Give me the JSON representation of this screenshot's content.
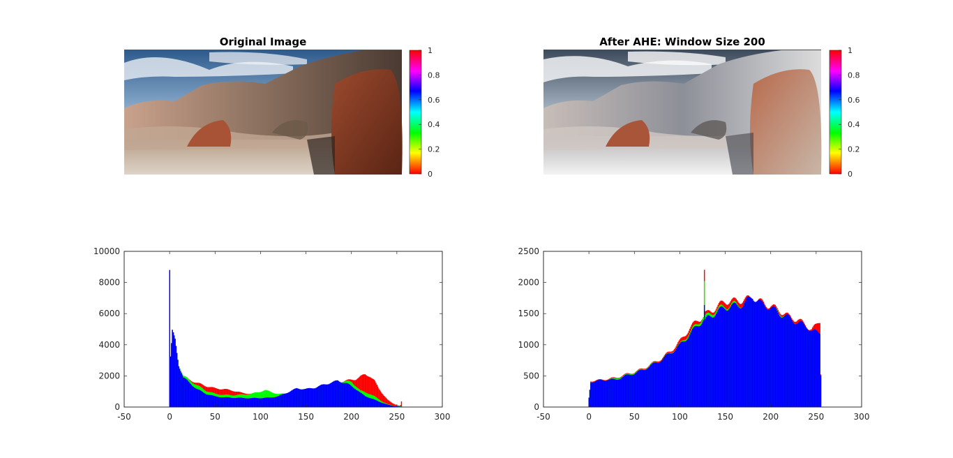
{
  "panels": {
    "original": {
      "title": "Original Image"
    },
    "ahe": {
      "title": "After AHE: Window Size 200"
    }
  },
  "colorbar": {
    "ticks": [
      "0",
      "0.2",
      "0.4",
      "0.6",
      "0.8",
      "1"
    ],
    "tick_values": [
      0,
      0.2,
      0.4,
      0.6,
      0.8,
      1
    ]
  },
  "series_colors": {
    "red": "#ff0000",
    "green": "#00ff00",
    "blue": "#0000ff"
  },
  "chart_data": [
    {
      "type": "bar",
      "title": "",
      "xlabel": "",
      "ylabel": "",
      "xlim": [
        -50,
        300
      ],
      "ylim": [
        0,
        10000
      ],
      "xticks": [
        -50,
        0,
        50,
        100,
        150,
        200,
        250,
        300
      ],
      "yticks": [
        0,
        2000,
        4000,
        6000,
        8000,
        10000
      ],
      "xtick_labels": [
        "-50",
        "0",
        "50",
        "100",
        "150",
        "200",
        "250",
        "300"
      ],
      "ytick_labels": [
        "0",
        "2000",
        "4000",
        "6000",
        "8000",
        "10000"
      ],
      "bins": [
        0,
        255
      ],
      "series": [
        {
          "color": "red",
          "points": [
            [
              0,
              8800
            ],
            [
              1,
              3200
            ],
            [
              3,
              4800
            ],
            [
              6,
              4300
            ],
            [
              10,
              2700
            ],
            [
              15,
              2000
            ],
            [
              20,
              1800
            ],
            [
              30,
              1550
            ],
            [
              40,
              1350
            ],
            [
              50,
              1200
            ],
            [
              60,
              1150
            ],
            [
              70,
              1050
            ],
            [
              80,
              900
            ],
            [
              90,
              850
            ],
            [
              100,
              800
            ],
            [
              110,
              780
            ],
            [
              120,
              760
            ],
            [
              130,
              850
            ],
            [
              140,
              1150
            ],
            [
              150,
              1150
            ],
            [
              160,
              1200
            ],
            [
              170,
              1350
            ],
            [
              180,
              1550
            ],
            [
              190,
              1650
            ],
            [
              200,
              1750
            ],
            [
              205,
              1800
            ],
            [
              210,
              1950
            ],
            [
              215,
              2100
            ],
            [
              220,
              2000
            ],
            [
              225,
              1700
            ],
            [
              230,
              1200
            ],
            [
              235,
              800
            ],
            [
              240,
              450
            ],
            [
              245,
              250
            ],
            [
              250,
              120
            ],
            [
              253,
              80
            ],
            [
              254,
              120
            ],
            [
              255,
              350
            ]
          ]
        },
        {
          "color": "green",
          "points": [
            [
              0,
              8800
            ],
            [
              1,
              3200
            ],
            [
              3,
              4800
            ],
            [
              6,
              4300
            ],
            [
              10,
              2700
            ],
            [
              15,
              2000
            ],
            [
              20,
              1800
            ],
            [
              30,
              1400
            ],
            [
              40,
              1050
            ],
            [
              50,
              850
            ],
            [
              60,
              780
            ],
            [
              70,
              760
            ],
            [
              80,
              800
            ],
            [
              90,
              850
            ],
            [
              100,
              1000
            ],
            [
              105,
              1080
            ],
            [
              110,
              1000
            ],
            [
              120,
              820
            ],
            [
              130,
              900
            ],
            [
              140,
              1150
            ],
            [
              150,
              1150
            ],
            [
              160,
              1200
            ],
            [
              170,
              1350
            ],
            [
              180,
              1550
            ],
            [
              190,
              1650
            ],
            [
              195,
              1650
            ],
            [
              200,
              1600
            ],
            [
              205,
              1350
            ],
            [
              210,
              1050
            ],
            [
              215,
              950
            ],
            [
              220,
              850
            ],
            [
              225,
              700
            ],
            [
              230,
              500
            ],
            [
              235,
              320
            ],
            [
              240,
              180
            ],
            [
              245,
              100
            ],
            [
              250,
              60
            ],
            [
              255,
              40
            ]
          ]
        },
        {
          "color": "blue",
          "points": [
            [
              0,
              8800
            ],
            [
              1,
              3200
            ],
            [
              3,
              4800
            ],
            [
              6,
              4300
            ],
            [
              10,
              2700
            ],
            [
              15,
              1900
            ],
            [
              20,
              1650
            ],
            [
              30,
              1150
            ],
            [
              40,
              850
            ],
            [
              50,
              680
            ],
            [
              60,
              620
            ],
            [
              70,
              600
            ],
            [
              80,
              580
            ],
            [
              90,
              570
            ],
            [
              100,
              580
            ],
            [
              110,
              600
            ],
            [
              120,
              700
            ],
            [
              130,
              950
            ],
            [
              140,
              1200
            ],
            [
              150,
              1150
            ],
            [
              160,
              1250
            ],
            [
              170,
              1450
            ],
            [
              180,
              1600
            ],
            [
              185,
              1700
            ],
            [
              190,
              1600
            ],
            [
              195,
              1500
            ],
            [
              200,
              1350
            ],
            [
              205,
              1150
            ],
            [
              210,
              900
            ],
            [
              215,
              700
            ],
            [
              220,
              600
            ],
            [
              225,
              480
            ],
            [
              230,
              350
            ],
            [
              235,
              250
            ],
            [
              240,
              150
            ],
            [
              245,
              80
            ],
            [
              250,
              40
            ],
            [
              255,
              20
            ]
          ]
        }
      ]
    },
    {
      "type": "bar",
      "title": "",
      "xlabel": "",
      "ylabel": "",
      "xlim": [
        -50,
        300
      ],
      "ylim": [
        0,
        2500
      ],
      "xticks": [
        -50,
        0,
        50,
        100,
        150,
        200,
        250,
        300
      ],
      "yticks": [
        0,
        500,
        1000,
        1500,
        2000,
        2500
      ],
      "xtick_labels": [
        "-50",
        "0",
        "50",
        "100",
        "150",
        "200",
        "250",
        "300"
      ],
      "ytick_labels": [
        "0",
        "500",
        "1000",
        "1500",
        "2000",
        "2500"
      ],
      "bins": [
        0,
        255
      ],
      "series": [
        {
          "color": "red",
          "points": [
            [
              0,
              150
            ],
            [
              2,
              420
            ],
            [
              10,
              430
            ],
            [
              20,
              450
            ],
            [
              30,
              470
            ],
            [
              40,
              520
            ],
            [
              50,
              560
            ],
            [
              60,
              620
            ],
            [
              70,
              700
            ],
            [
              80,
              780
            ],
            [
              90,
              900
            ],
            [
              100,
              1050
            ],
            [
              110,
              1250
            ],
            [
              120,
              1400
            ],
            [
              126,
              1450
            ],
            [
              127,
              2180
            ],
            [
              128,
              1500
            ],
            [
              130,
              1500
            ],
            [
              140,
              1600
            ],
            [
              150,
              1700
            ],
            [
              160,
              1700
            ],
            [
              170,
              1720
            ],
            [
              180,
              1750
            ],
            [
              190,
              1680
            ],
            [
              200,
              1620
            ],
            [
              210,
              1550
            ],
            [
              220,
              1450
            ],
            [
              230,
              1400
            ],
            [
              240,
              1300
            ],
            [
              245,
              1250
            ],
            [
              250,
              1300
            ],
            [
              254,
              1380
            ],
            [
              255,
              540
            ]
          ]
        },
        {
          "color": "green",
          "points": [
            [
              0,
              150
            ],
            [
              2,
              400
            ],
            [
              10,
              420
            ],
            [
              20,
              440
            ],
            [
              30,
              460
            ],
            [
              40,
              510
            ],
            [
              50,
              550
            ],
            [
              60,
              610
            ],
            [
              70,
              690
            ],
            [
              80,
              760
            ],
            [
              90,
              880
            ],
            [
              100,
              1000
            ],
            [
              110,
              1180
            ],
            [
              120,
              1350
            ],
            [
              126,
              1450
            ],
            [
              127,
              2000
            ],
            [
              128,
              1450
            ],
            [
              130,
              1460
            ],
            [
              140,
              1560
            ],
            [
              150,
              1620
            ],
            [
              160,
              1650
            ],
            [
              170,
              1650
            ],
            [
              180,
              1700
            ],
            [
              190,
              1650
            ],
            [
              200,
              1580
            ],
            [
              210,
              1520
            ],
            [
              220,
              1420
            ],
            [
              230,
              1350
            ],
            [
              240,
              1250
            ],
            [
              245,
              1200
            ],
            [
              250,
              980
            ],
            [
              254,
              1200
            ],
            [
              255,
              520
            ]
          ]
        },
        {
          "color": "blue",
          "points": [
            [
              0,
              150
            ],
            [
              2,
              400
            ],
            [
              10,
              420
            ],
            [
              20,
              440
            ],
            [
              30,
              440
            ],
            [
              40,
              500
            ],
            [
              50,
              540
            ],
            [
              60,
              600
            ],
            [
              70,
              680
            ],
            [
              80,
              760
            ],
            [
              90,
              870
            ],
            [
              100,
              990
            ],
            [
              110,
              1150
            ],
            [
              120,
              1320
            ],
            [
              126,
              1400
            ],
            [
              127,
              1620
            ],
            [
              128,
              1380
            ],
            [
              130,
              1420
            ],
            [
              140,
              1520
            ],
            [
              150,
              1600
            ],
            [
              160,
              1620
            ],
            [
              170,
              1650
            ],
            [
              180,
              1780
            ],
            [
              190,
              1650
            ],
            [
              200,
              1600
            ],
            [
              210,
              1500
            ],
            [
              220,
              1430
            ],
            [
              230,
              1350
            ],
            [
              240,
              1300
            ],
            [
              245,
              1220
            ],
            [
              250,
              1200
            ],
            [
              254,
              1200
            ],
            [
              255,
              520
            ]
          ]
        }
      ]
    }
  ]
}
